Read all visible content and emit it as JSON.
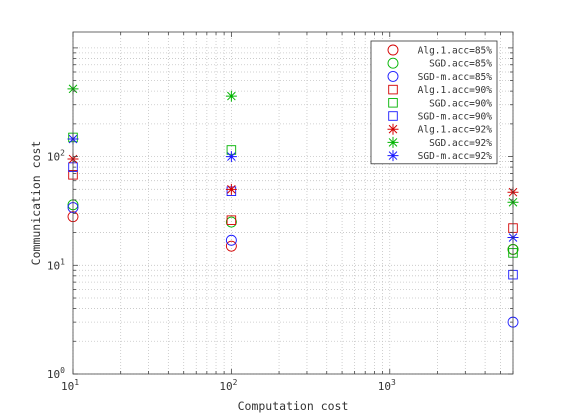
{
  "chart_data": {
    "type": "scatter",
    "title": "",
    "xlabel": "Computation cost",
    "ylabel": "Communication cost",
    "xscale": "log",
    "yscale": "log",
    "xlim": [
      10,
      6000
    ],
    "ylim": [
      1,
      1400
    ],
    "x_ticks": [
      {
        "value": 10,
        "base": "10",
        "exp": "1"
      },
      {
        "value": 100,
        "base": "10",
        "exp": "2"
      },
      {
        "value": 1000,
        "base": "10",
        "exp": "3"
      }
    ],
    "y_ticks": [
      {
        "value": 1,
        "base": "10",
        "exp": "0"
      },
      {
        "value": 10,
        "base": "10",
        "exp": "1"
      },
      {
        "value": 100,
        "base": "10",
        "exp": "2"
      }
    ],
    "grid": true,
    "legend_position": "top-right",
    "series": [
      {
        "name": "Alg.1.acc=85%",
        "marker": "circle",
        "color": "#d40000",
        "points": [
          [
            10,
            28
          ],
          [
            100,
            15
          ],
          [
            6000,
            14
          ]
        ]
      },
      {
        "name": "SGD.acc=85%",
        "marker": "circle",
        "color": "#00b400",
        "points": [
          [
            10,
            36
          ],
          [
            100,
            25
          ],
          [
            6000,
            14
          ]
        ]
      },
      {
        "name": "SGD-m.acc=85%",
        "marker": "circle",
        "color": "#1a1aff",
        "points": [
          [
            10,
            34
          ],
          [
            100,
            17
          ],
          [
            6000,
            3.0
          ]
        ]
      },
      {
        "name": "Alg.1.acc=90%",
        "marker": "square",
        "color": "#d40000",
        "points": [
          [
            10,
            68
          ],
          [
            100,
            26
          ],
          [
            6000,
            22
          ]
        ]
      },
      {
        "name": "SGD.acc=90%",
        "marker": "square",
        "color": "#00b400",
        "points": [
          [
            10,
            150
          ],
          [
            100,
            115
          ],
          [
            6000,
            13
          ]
        ]
      },
      {
        "name": "SGD-m.acc=90%",
        "marker": "square",
        "color": "#1a1aff",
        "points": [
          [
            10,
            80
          ],
          [
            100,
            48
          ],
          [
            6000,
            8.2
          ]
        ]
      },
      {
        "name": "Alg.1.acc=92%",
        "marker": "asterisk",
        "color": "#d40000",
        "points": [
          [
            10,
            95
          ],
          [
            100,
            50
          ],
          [
            6000,
            47
          ]
        ]
      },
      {
        "name": "SGD.acc=92%",
        "marker": "asterisk",
        "color": "#00b400",
        "points": [
          [
            10,
            420
          ],
          [
            100,
            360
          ],
          [
            6000,
            38
          ]
        ]
      },
      {
        "name": "SGD-m.acc=92%",
        "marker": "asterisk",
        "color": "#1a1aff",
        "points": [
          [
            10,
            145
          ],
          [
            100,
            100
          ],
          [
            6000,
            18
          ]
        ]
      }
    ]
  }
}
